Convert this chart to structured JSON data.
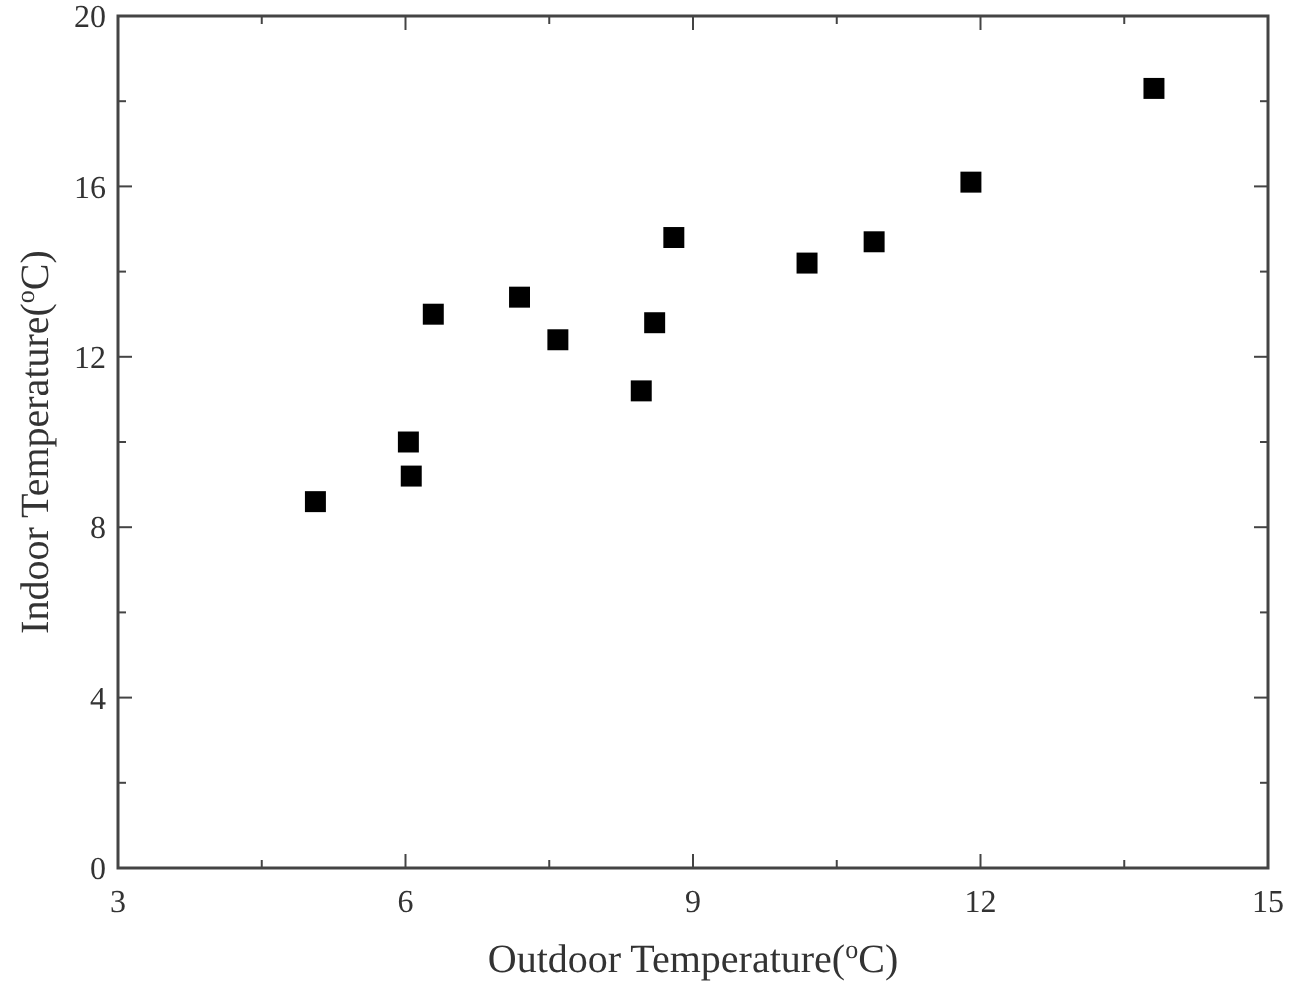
{
  "chart_data": {
    "type": "scatter",
    "xlabel": "Outdoor Temperature($^{o}$C)",
    "ylabel": "Indoor Temperature($^{o}$C)",
    "x": [
      5.06,
      6.03,
      6.06,
      6.29,
      7.19,
      7.59,
      8.46,
      8.6,
      8.8,
      10.19,
      10.89,
      11.9,
      13.81
    ],
    "series": [
      {
        "color": "#000000",
        "values": [
          8.6,
          10.0,
          9.2,
          13.0,
          13.4,
          12.4,
          11.2,
          12.8,
          14.8,
          14.2,
          14.7,
          16.1,
          18.3
        ]
      }
    ],
    "marker": "square",
    "xlim": [
      3,
      15
    ],
    "xticks": [
      3,
      {
        "value": 4.5,
        "label": null
      },
      6,
      {
        "value": 7.5,
        "label": null
      },
      9,
      {
        "value": 10.5,
        "label": null
      },
      12,
      {
        "value": 13.5,
        "label": null
      },
      15
    ],
    "ylim": [
      0,
      20
    ],
    "yticks": [
      0,
      {
        "value": 2,
        "label": null
      },
      4,
      {
        "value": 6,
        "label": null
      },
      8,
      {
        "value": 10,
        "label": null
      },
      12,
      {
        "value": 14,
        "label": null
      },
      16,
      {
        "value": 18,
        "label": null
      },
      20
    ]
  }
}
